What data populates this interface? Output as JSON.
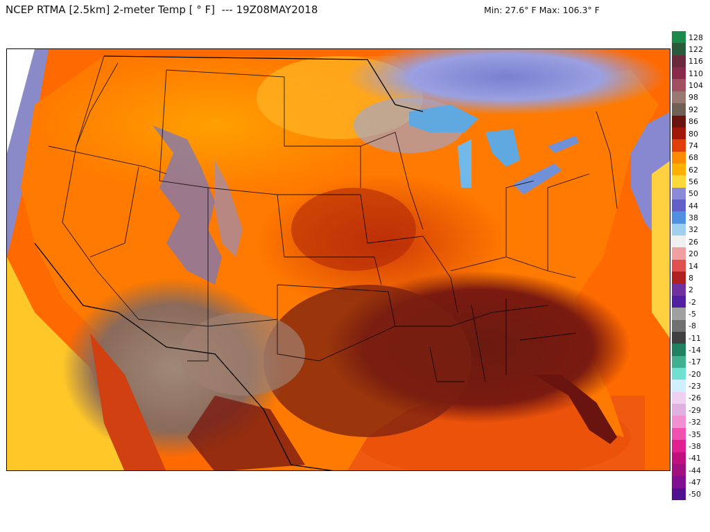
{
  "header": {
    "title": "NCEP RTMA [2.5km] 2-meter Temp [ ° F]  --- 19Z08MAY2018",
    "minmax": "Min: 27.6° F Max: 106.3° F"
  },
  "colorbar": {
    "labels": [
      "128",
      "122",
      "116",
      "110",
      "104",
      "98",
      "92",
      "86",
      "80",
      "74",
      "68",
      "62",
      "56",
      "50",
      "44",
      "38",
      "32",
      "26",
      "20",
      "14",
      "8",
      "2",
      "-2",
      "-5",
      "-8",
      "-11",
      "-14",
      "-17",
      "-20",
      "-23",
      "-26",
      "-29",
      "-32",
      "-35",
      "-38",
      "-41",
      "-44",
      "-47",
      "-50"
    ],
    "colors": [
      "#1a8a4a",
      "#2a5a3c",
      "#6a2a3c",
      "#8a2a4a",
      "#a05060",
      "#9a7a70",
      "#706055",
      "#6a1410",
      "#a01808",
      "#e04008",
      "#ff8c00",
      "#ffb000",
      "#ffd83a",
      "#8a8ad8",
      "#6060c8",
      "#5090e0",
      "#a0d0f0",
      "#f0f0f0",
      "#f0a0a0",
      "#e05050",
      "#b02020",
      "#7030a0",
      "#5020a0",
      "#a0a0a0",
      "#707070",
      "#404040",
      "#208060",
      "#40b090",
      "#70e0d0",
      "#d0f0ff",
      "#f0d0f0",
      "#e0b0e0",
      "#f090d0",
      "#f050b0",
      "#e02090",
      "#c01080",
      "#a01080",
      "#801090",
      "#501090"
    ]
  }
}
